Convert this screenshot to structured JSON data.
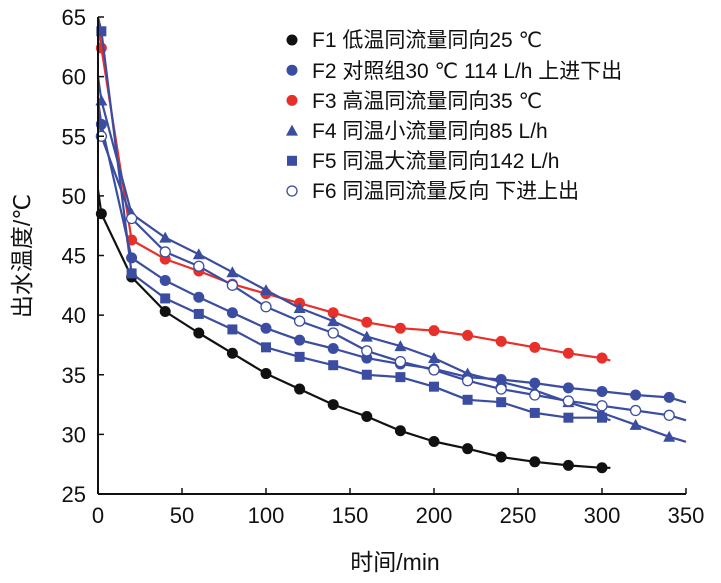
{
  "chart_data": {
    "type": "line",
    "title": "",
    "xlabel": "时间/min",
    "ylabel": "出水温度/℃",
    "xlim": [
      0,
      350
    ],
    "ylim": [
      25,
      65
    ],
    "xticks": [
      0,
      50,
      100,
      150,
      200,
      250,
      300,
      350
    ],
    "yticks": [
      25,
      30,
      35,
      40,
      45,
      50,
      55,
      60,
      65
    ],
    "grid": false,
    "legend_position": "top-right",
    "series": [
      {
        "name": "F1 低温同流量同向25 ℃",
        "color": "#111111",
        "marker": "circle-filled",
        "x": [
          2,
          20,
          40,
          60,
          80,
          100,
          120,
          140,
          160,
          180,
          200,
          220,
          240,
          260,
          280,
          300
        ],
        "y": [
          48.5,
          43.2,
          40.3,
          38.5,
          36.8,
          35.1,
          33.8,
          32.5,
          31.5,
          30.3,
          29.4,
          28.8,
          28.1,
          27.7,
          27.4,
          27.2
        ]
      },
      {
        "name": "F2 对照组30 ℃ 114 L/h 上进下出",
        "color": "#3a4da0",
        "marker": "circle-filled",
        "x": [
          2,
          20,
          40,
          60,
          80,
          100,
          120,
          140,
          160,
          180,
          200,
          220,
          240,
          260,
          280,
          300,
          320,
          340
        ],
        "y": [
          56,
          44.8,
          42.9,
          41.5,
          40.2,
          38.9,
          37.9,
          37.2,
          36.4,
          35.9,
          35.5,
          34.8,
          34.6,
          34.3,
          33.9,
          33.6,
          33.3,
          33.1
        ]
      },
      {
        "name": "F3 高温同流量同向35 ℃",
        "color": "#e8302a",
        "marker": "circle-filled",
        "x": [
          2,
          20,
          40,
          60,
          80,
          100,
          120,
          140,
          160,
          180,
          200,
          220,
          240,
          260,
          280,
          300
        ],
        "y": [
          62.4,
          46.3,
          44.7,
          43.7,
          42.6,
          41.8,
          41.0,
          40.2,
          39.4,
          38.9,
          38.7,
          38.3,
          37.8,
          37.3,
          36.8,
          36.4
        ]
      },
      {
        "name": "F4 同温小流量同向85 L/h",
        "color": "#3a4da0",
        "marker": "triangle",
        "x": [
          2,
          20,
          40,
          60,
          80,
          100,
          120,
          140,
          160,
          180,
          200,
          220,
          240,
          260,
          280,
          300,
          320,
          340
        ],
        "y": [
          58,
          48.5,
          46.5,
          45.1,
          43.6,
          42.1,
          40.6,
          39.5,
          38.2,
          37.4,
          36.4,
          35.1,
          34.4,
          33.7,
          32.7,
          31.8,
          30.8,
          29.8
        ]
      },
      {
        "name": "F5 同温大流量同向142 L/h",
        "color": "#3a4da0",
        "marker": "square",
        "x": [
          2,
          20,
          40,
          60,
          80,
          100,
          120,
          140,
          160,
          180,
          200,
          220,
          240,
          260,
          280,
          300
        ],
        "y": [
          63.8,
          43.5,
          41.4,
          40.1,
          38.8,
          37.3,
          36.5,
          35.8,
          35.0,
          34.8,
          34.0,
          32.9,
          32.7,
          31.8,
          31.4,
          31.4
        ]
      },
      {
        "name": "F6 同温同流量反向 下进上出",
        "color": "#3a4da0",
        "marker": "circle-open",
        "x": [
          2,
          20,
          40,
          60,
          80,
          100,
          120,
          140,
          160,
          180,
          200,
          220,
          240,
          260,
          280,
          300,
          320,
          340
        ],
        "y": [
          55,
          48.1,
          45.3,
          44.1,
          42.5,
          40.7,
          39.5,
          38.5,
          37.0,
          36.1,
          35.4,
          34.5,
          33.8,
          33.3,
          32.8,
          32.4,
          32.0,
          31.6
        ]
      }
    ]
  }
}
